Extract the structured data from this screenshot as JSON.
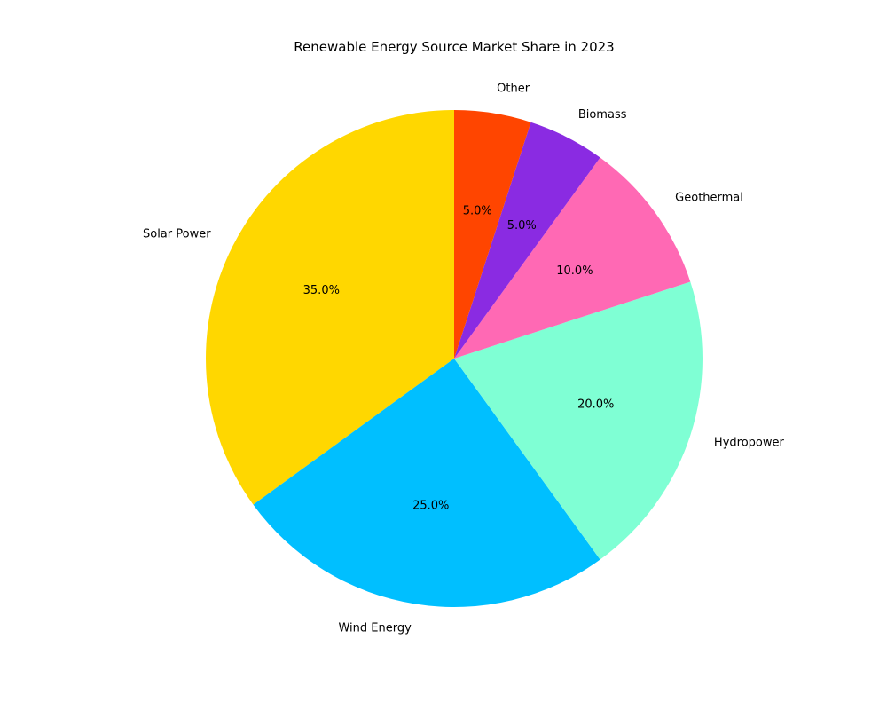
{
  "chart_data": {
    "type": "pie",
    "title": "Renewable Energy Source Market Share in 2023",
    "categories": [
      "Solar Power",
      "Wind Energy",
      "Hydropower",
      "Geothermal",
      "Biomass",
      "Other"
    ],
    "values": [
      35,
      25,
      20,
      10,
      5,
      5
    ],
    "percent_labels": [
      "35.0%",
      "25.0%",
      "20.0%",
      "10.0%",
      "5.0%",
      "5.0%"
    ],
    "colors": [
      "#FFD700",
      "#00BFFF",
      "#7FFFD4",
      "#FF69B4",
      "#8A2BE2",
      "#FF4500"
    ],
    "start_angle_deg": 90,
    "direction": "counterclockwise",
    "legend": "none"
  }
}
